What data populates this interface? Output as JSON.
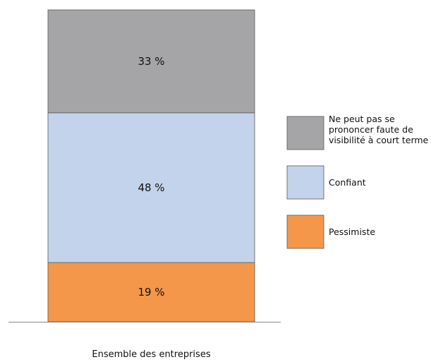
{
  "chart_data": {
    "type": "bar",
    "stacked": true,
    "unit": "%",
    "categories": [
      "Ensemble des entreprises"
    ],
    "series": [
      {
        "name": "Pessimiste",
        "values": [
          19
        ],
        "label": "19 %",
        "color": "#f4974a"
      },
      {
        "name": "Confiant",
        "values": [
          48
        ],
        "label": "48 %",
        "color": "#c4d3ec"
      },
      {
        "name": "Ne peut pas se prononcer faute de visibilité à court terme",
        "values": [
          33
        ],
        "label": "33 %",
        "color": "#a5a5a7"
      }
    ],
    "legend": {
      "placement": "right",
      "items": [
        {
          "series": 2,
          "lines": [
            "Ne peut pas se",
            "prononcer faute de",
            "visibilité à court terme"
          ]
        },
        {
          "series": 1,
          "lines": [
            "Confiant"
          ]
        },
        {
          "series": 0,
          "lines": [
            "Pessimiste"
          ]
        }
      ]
    },
    "ylim": [
      0,
      100
    ],
    "grid": false,
    "title": "",
    "xlabel": "",
    "ylabel": ""
  }
}
